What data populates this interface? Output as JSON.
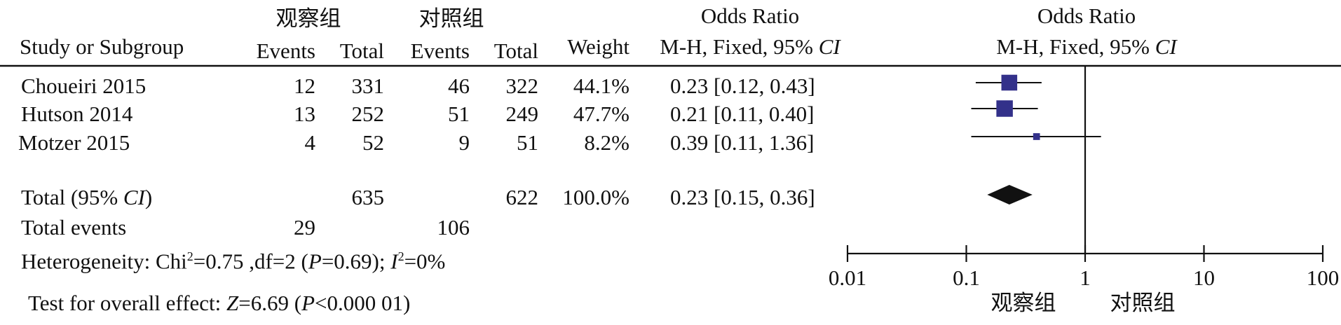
{
  "header": {
    "group1": "观察组",
    "group2": "对照组",
    "study_col": "Study or Subgroup",
    "events": "Events",
    "total": "Total",
    "weight": "Weight",
    "or_title": "Odds Ratio",
    "or_method": "M-H, Fixed, 95% ",
    "ci_label": "CI",
    "plot_title": "Odds Ratio",
    "plot_method": "M-H, Fixed, 95% ",
    "plot_ci_label": "CI"
  },
  "studies": [
    {
      "name": "Choueiri 2015",
      "events1": "12",
      "total1": "331",
      "events2": "46",
      "total2": "322",
      "weight": "44.1%",
      "or_text": "0.23 [0.12, 0.43]"
    },
    {
      "name": "Hutson 2014",
      "events1": "13",
      "total1": "252",
      "events2": "51",
      "total2": "249",
      "weight": "47.7%",
      "or_text": "0.21 [0.11, 0.40]"
    },
    {
      "name": "Motzer 2015",
      "events1": "4",
      "total1": "52",
      "events2": "9",
      "total2": "51",
      "weight": "8.2%",
      "or_text": "0.39 [0.11, 1.36]"
    }
  ],
  "total_row": {
    "label_prefix": "Total (95% ",
    "label_ci": "CI",
    "label_suffix": ")",
    "total1": "635",
    "total2": "622",
    "weight": "100.0%",
    "or_text": "0.23 [0.15, 0.36]"
  },
  "total_events": {
    "label": "Total events",
    "events1": "29",
    "events2": "106"
  },
  "heterogeneity": {
    "prefix": "Heterogeneity: Chi",
    "sup1": "2",
    "mid": "=0.75 ,df=2 (",
    "p": "P",
    "mid2": "=0.69); ",
    "i": "I",
    "sup2": "2",
    "suffix": "=0%"
  },
  "overall_effect": {
    "prefix": "Test for overall effect: ",
    "z": "Z",
    "mid": "=6.69 (",
    "p": "P",
    "suffix": "<0.000 01)"
  },
  "axis": {
    "favours_left": "观察组",
    "favours_right": "对照组"
  },
  "chart_data": {
    "type": "forest",
    "scale": "log",
    "xlim": [
      0.01,
      100
    ],
    "ticks": [
      0.01,
      0.1,
      1,
      10,
      100
    ],
    "tick_labels": [
      "0.01",
      "0.1",
      "1",
      "10",
      "100"
    ],
    "reference_line": 1,
    "studies": [
      {
        "name": "Choueiri 2015",
        "or": 0.23,
        "lower": 0.12,
        "upper": 0.43,
        "weight": 44.1
      },
      {
        "name": "Hutson 2014",
        "or": 0.21,
        "lower": 0.11,
        "upper": 0.4,
        "weight": 47.7
      },
      {
        "name": "Motzer 2015",
        "or": 0.39,
        "lower": 0.11,
        "upper": 1.36,
        "weight": 8.2
      }
    ],
    "pooled": {
      "or": 0.23,
      "lower": 0.15,
      "upper": 0.36
    },
    "colors": {
      "marker": "#33318a",
      "diamond": "#111111",
      "line": "#111111"
    }
  }
}
